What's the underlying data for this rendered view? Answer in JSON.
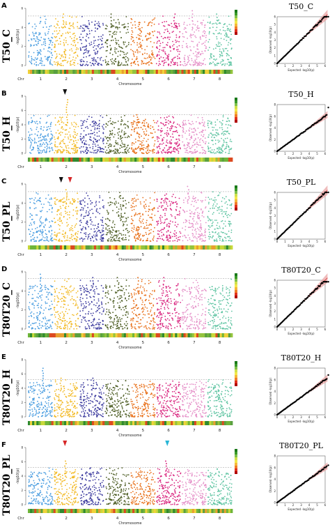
{
  "figure": {
    "x_axis_label": "Chromosome",
    "chr_prefix": "Chr"
  },
  "chart_data": [
    {
      "type": "scatter",
      "panel": "A",
      "row_label": "T50_C",
      "qq_title": "T50_C",
      "chromosomes": [
        "1",
        "2",
        "3",
        "4",
        "5",
        "6",
        "7",
        "8"
      ],
      "ylabel": "-log10(p)",
      "ylim": [
        0,
        6
      ],
      "yticks": [
        0,
        2,
        4,
        6
      ],
      "threshold": 5.2,
      "peaks": [
        {
          "chr": "2",
          "value": 5.4
        },
        {
          "chr": "4",
          "value": 5.5
        },
        {
          "chr": "6",
          "value": 5.6
        },
        {
          "chr": "7",
          "value": 5.8
        },
        {
          "chr": "8",
          "value": 5.5
        }
      ],
      "arrows": [],
      "qq": {
        "xlabel": "Expected -log10(p)",
        "ylabel": "Observed -log10(p)",
        "xlim": [
          0,
          6
        ],
        "ylim": [
          0,
          6
        ],
        "max_observed": 6.0
      },
      "colors": {
        "series": [
          "#4a9de0",
          "#f2b821",
          "#3b3a9e",
          "#4e5e25",
          "#e8701a",
          "#d9267f",
          "#e590c8",
          "#5fc4a2"
        ]
      }
    },
    {
      "type": "scatter",
      "panel": "B",
      "row_label": "T50_H",
      "qq_title": "T50_H",
      "chromosomes": [
        "1",
        "2",
        "3",
        "4",
        "5",
        "6",
        "7",
        "8"
      ],
      "ylabel": "-log10(p)",
      "ylim": [
        0,
        8
      ],
      "yticks": [
        0,
        2,
        4,
        6,
        8
      ],
      "threshold": 5.4,
      "peaks": [
        {
          "chr": "2",
          "value": 7.5
        },
        {
          "chr": "5",
          "value": 5.4
        },
        {
          "chr": "6",
          "value": 5.3
        }
      ],
      "arrows": [
        {
          "chr": "2",
          "color": "#111111"
        }
      ],
      "qq": {
        "xlabel": "Expected -log10(p)",
        "ylabel": "Observed -log10(p)",
        "xlim": [
          0,
          6
        ],
        "ylim": [
          0,
          8
        ],
        "max_observed": 7.5
      },
      "colors": {
        "series": [
          "#4a9de0",
          "#f2b821",
          "#3b3a9e",
          "#4e5e25",
          "#e8701a",
          "#d9267f",
          "#e590c8",
          "#5fc4a2"
        ]
      }
    },
    {
      "type": "scatter",
      "panel": "C",
      "row_label": "T50_PL",
      "qq_title": "T50_PL",
      "chromosomes": [
        "1",
        "2",
        "3",
        "4",
        "5",
        "6",
        "7",
        "8"
      ],
      "ylabel": "-log10(p)",
      "ylim": [
        0,
        6
      ],
      "yticks": [
        0,
        2,
        4,
        6
      ],
      "threshold": 5.2,
      "peaks": [
        {
          "chr": "2",
          "value": 5.7
        },
        {
          "chr": "7",
          "value": 5.9
        }
      ],
      "arrows": [
        {
          "chr": "2",
          "color": "#111111",
          "offset": -0.15
        },
        {
          "chr": "2",
          "color": "#d62728",
          "offset": 0.2
        }
      ],
      "qq": {
        "xlabel": "Expected -log10(p)",
        "ylabel": "Observed -log10(p)",
        "xlim": [
          0,
          6
        ],
        "ylim": [
          0,
          6
        ],
        "max_observed": 6.0
      },
      "colors": {
        "series": [
          "#4a9de0",
          "#f2b821",
          "#3b3a9e",
          "#4e5e25",
          "#e8701a",
          "#d9267f",
          "#e590c8",
          "#5fc4a2"
        ]
      }
    },
    {
      "type": "scatter",
      "panel": "D",
      "row_label": "T80T20_C",
      "qq_title": "T80T20_C",
      "chromosomes": [
        "1",
        "2",
        "3",
        "4",
        "5",
        "6",
        "7",
        "8"
      ],
      "ylabel": "-log10(p)",
      "ylim": [
        0,
        6
      ],
      "yticks": [
        0,
        2,
        4,
        6
      ],
      "threshold": 5.3,
      "peaks": [
        {
          "chr": "1",
          "value": 5.8
        },
        {
          "chr": "3",
          "value": 5.5
        },
        {
          "chr": "4",
          "value": 5.6
        },
        {
          "chr": "5",
          "value": 5.7
        },
        {
          "chr": "6",
          "value": 5.5
        }
      ],
      "arrows": [],
      "qq": {
        "xlabel": "Expected -log10(p)",
        "ylabel": "Observed -log10(p)",
        "xlim": [
          0,
          6
        ],
        "ylim": [
          0,
          6
        ],
        "max_observed": 5.8
      },
      "colors": {
        "series": [
          "#4a9de0",
          "#f2b821",
          "#3b3a9e",
          "#4e5e25",
          "#e8701a",
          "#d9267f",
          "#e590c8",
          "#5fc4a2"
        ]
      }
    },
    {
      "type": "scatter",
      "panel": "E",
      "row_label": "T80T20_H",
      "qq_title": "T80T20_H",
      "chromosomes": [
        "1",
        "2",
        "3",
        "4",
        "5",
        "6",
        "7",
        "8"
      ],
      "ylabel": "-log10(p)",
      "ylim": [
        0,
        8
      ],
      "yticks": [
        0,
        2,
        4,
        6,
        8
      ],
      "threshold": 5.2,
      "peaks": [
        {
          "chr": "1",
          "value": 6.8
        },
        {
          "chr": "2",
          "value": 5.6
        },
        {
          "chr": "3",
          "value": 5.4
        }
      ],
      "arrows": [],
      "qq": {
        "xlabel": "Expected -log10(p)",
        "ylabel": "Observed -log10(p)",
        "xlim": [
          0,
          6
        ],
        "ylim": [
          0,
          8
        ],
        "max_observed": 6.8
      },
      "colors": {
        "series": [
          "#4a9de0",
          "#f2b821",
          "#3b3a9e",
          "#4e5e25",
          "#e8701a",
          "#d9267f",
          "#e590c8",
          "#5fc4a2"
        ]
      }
    },
    {
      "type": "scatter",
      "panel": "F",
      "row_label": "T80T20_PL",
      "qq_title": "T80T20_PL",
      "chromosomes": [
        "1",
        "2",
        "3",
        "4",
        "5",
        "6",
        "7",
        "8"
      ],
      "ylabel": "-log10(p)",
      "ylim": [
        0,
        8
      ],
      "yticks": [
        0,
        2,
        4,
        6,
        8
      ],
      "threshold": 5.2,
      "peaks": [
        {
          "chr": "2",
          "value": 6.3
        },
        {
          "chr": "6",
          "value": 6.4
        }
      ],
      "arrows": [
        {
          "chr": "2",
          "color": "#d62728"
        },
        {
          "chr": "6",
          "color": "#29b6d6"
        }
      ],
      "qq": {
        "xlabel": "Expected -log10(p)",
        "ylabel": "Observed -log10(p)",
        "xlim": [
          0,
          6
        ],
        "ylim": [
          0,
          8
        ],
        "max_observed": 6.4
      },
      "colors": {
        "series": [
          "#4a9de0",
          "#f2b821",
          "#3b3a9e",
          "#4e5e25",
          "#e8701a",
          "#d9267f",
          "#e590c8",
          "#5fc4a2"
        ]
      }
    }
  ]
}
